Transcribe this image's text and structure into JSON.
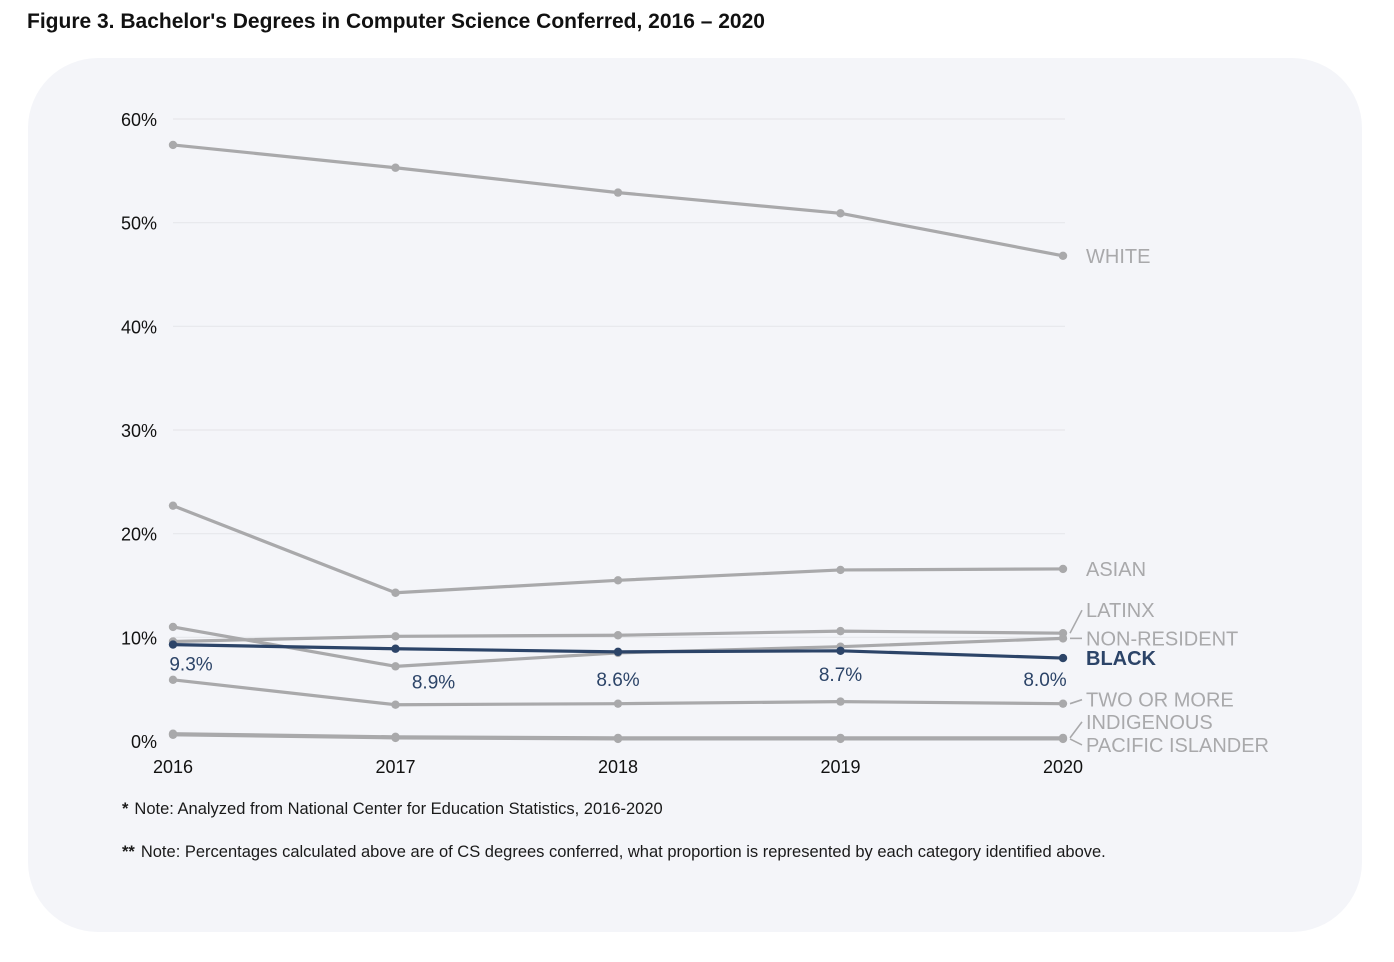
{
  "figure": {
    "title": "Figure 3. Bachelor's Degrees in Computer Science Conferred, 2016 – 2020"
  },
  "notes": [
    {
      "mark": "*",
      "text": "Note: Analyzed from National Center for Education Statistics, 2016-2020"
    },
    {
      "mark": "**",
      "text": "Note: Percentages calculated above are of CS degrees conferred, what proportion is represented by each category identified above."
    }
  ],
  "colors": {
    "background": "#f4f5f9",
    "muted_series": "#a9a9ab",
    "highlight_series": "#2c4468",
    "grid": "#e6e7eb",
    "tick_text": "#111111"
  },
  "chart_data": {
    "type": "line",
    "title": "",
    "xlabel": "",
    "ylabel": "",
    "x": [
      "2016",
      "2017",
      "2018",
      "2019",
      "2020"
    ],
    "ylim": [
      0,
      60
    ],
    "yticks": [
      0,
      10,
      20,
      30,
      40,
      50,
      60
    ],
    "ytick_labels": [
      "0%",
      "10%",
      "20%",
      "30%",
      "40%",
      "50%",
      "60%"
    ],
    "grid": "horizontal",
    "legend": "direct labels at right end of lines",
    "series": [
      {
        "name": "WHITE",
        "values": [
          57.5,
          55.3,
          52.9,
          50.9,
          46.8
        ],
        "highlight": false
      },
      {
        "name": "ASIAN",
        "values": [
          22.7,
          14.3,
          15.5,
          16.5,
          16.6
        ],
        "highlight": false
      },
      {
        "name": "LATINX",
        "values": [
          9.6,
          10.1,
          10.2,
          10.6,
          10.4
        ],
        "highlight": false
      },
      {
        "name": "NON-RESIDENT",
        "values": [
          11.0,
          7.2,
          8.5,
          9.1,
          9.9
        ],
        "highlight": false
      },
      {
        "name": "TWO OR MORE",
        "values": [
          5.9,
          3.5,
          3.6,
          3.8,
          3.6
        ],
        "highlight": false
      },
      {
        "name": "INDIGENOUS",
        "values": [
          0.7,
          0.4,
          0.3,
          0.3,
          0.3
        ],
        "highlight": false
      },
      {
        "name": "PACIFIC ISLANDER",
        "values": [
          0.6,
          0.3,
          0.2,
          0.2,
          0.2
        ],
        "highlight": false
      },
      {
        "name": "BLACK",
        "values": [
          9.3,
          8.9,
          8.6,
          8.7,
          8.0
        ],
        "highlight": true,
        "data_labels": [
          "9.3%",
          "8.9%",
          "8.6%",
          "8.7%",
          "8.0%"
        ]
      }
    ]
  }
}
